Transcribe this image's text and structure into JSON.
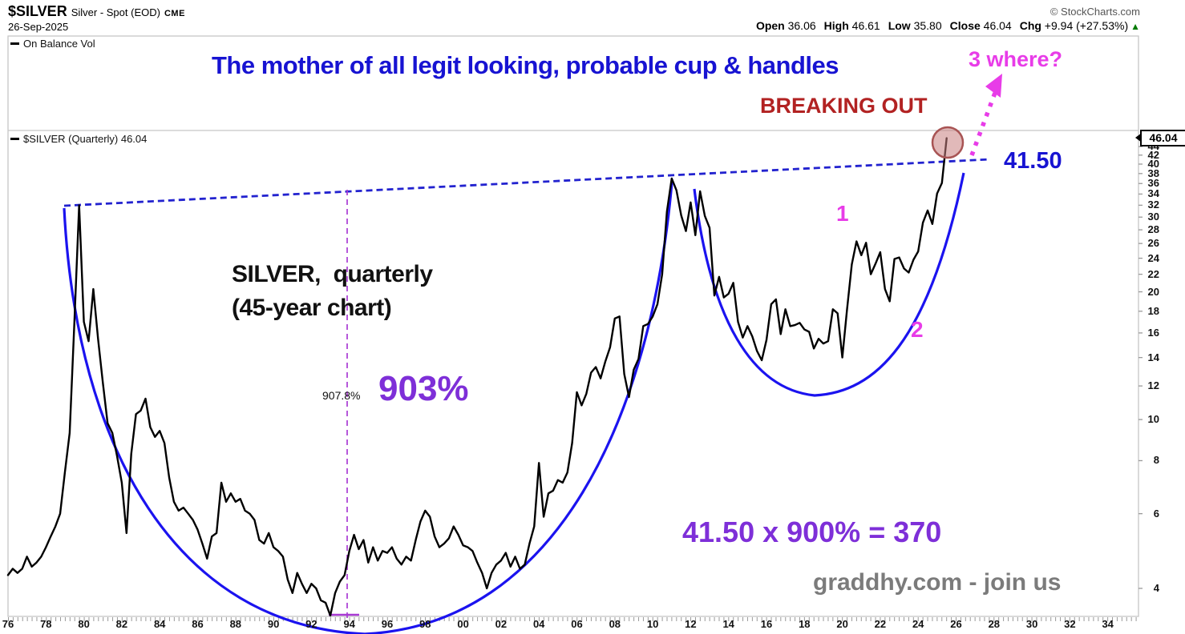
{
  "header": {
    "symbol": "$SILVER",
    "name": "Silver - Spot (EOD)",
    "exchange": "CME",
    "date": "26-Sep-2025",
    "copyright": "© StockCharts.com",
    "quote": {
      "fields": [
        {
          "label": "Open",
          "value": "36.06"
        },
        {
          "label": "High",
          "value": "46.61"
        },
        {
          "label": "Low",
          "value": "35.80"
        },
        {
          "label": "Close",
          "value": "46.04"
        },
        {
          "label": "Chg",
          "value": "+9.94 (+27.53%)"
        }
      ],
      "direction": "up",
      "direction_icon": "▲"
    }
  },
  "panels": {
    "obv": {
      "legend": "On Balance Vol"
    },
    "main": {
      "legend": "$SILVER (Quarterly) 46.04"
    }
  },
  "annotations": {
    "title": "The mother of all legit looking, probable cup & handles",
    "breaking_out": "BREAKING OUT",
    "where": "3 where?",
    "level_label": "41.50",
    "chart_label_line1": "SILVER,  quarterly",
    "chart_label_line2": "(45-year chart)",
    "measure_small": "907.8%",
    "measure_big": "903%",
    "cup1_label": "1",
    "cup2_label": "2",
    "projection": "41.50 x 900% = 370",
    "watermark": "graddhy.com - join us",
    "price_tag": "46.04"
  },
  "colors": {
    "title_blue": "#1713d2",
    "line_blue": "#1b13ef",
    "trend_blue": "#2222cf",
    "magenta": "#e83ce8",
    "violet_measure": "#a93bd4",
    "purple": "#7e2fd8",
    "breakout_red": "#b22222",
    "circle_red": "#a85454",
    "watermark_gray": "#7b7b7b",
    "up_green": "#007a00"
  },
  "axes": {
    "y_ticks": [
      44,
      42,
      40,
      38,
      36,
      34,
      32,
      30,
      28,
      26,
      24,
      22,
      20,
      18,
      16,
      14,
      12,
      10,
      8,
      6,
      4
    ],
    "x_start_year": 1976,
    "x_step_years": 2,
    "x_labels": [
      "76",
      "78",
      "80",
      "82",
      "84",
      "86",
      "88",
      "90",
      "92",
      "94",
      "96",
      "98",
      "00",
      "02",
      "04",
      "06",
      "08",
      "10",
      "12",
      "14",
      "16",
      "18",
      "20",
      "22",
      "24",
      "26",
      "28",
      "30",
      "32",
      "34"
    ]
  },
  "chart_data": {
    "type": "line",
    "symbol": "$SILVER",
    "timeframe": "Quarterly",
    "y_scale": "log",
    "x_range": [
      1976,
      2034.5
    ],
    "y_ticks": [
      4,
      6,
      8,
      10,
      12,
      14,
      16,
      18,
      20,
      22,
      24,
      26,
      28,
      30,
      32,
      34,
      36,
      38,
      40,
      42,
      44
    ],
    "last_close": 46.04,
    "resistance_level": 41.5,
    "grid": false,
    "legend_position": "top-left",
    "overlays": [
      "large-cup-arc-1980-2011",
      "small-cup-arc-2011-2025",
      "dashed-resistance-trendline-41.50",
      "vertical-measure-line-903pct",
      "breakout-circle-2025",
      "projection-arrow"
    ],
    "series": [
      {
        "name": "$SILVER (Quarterly)",
        "color": "#000000",
        "points": [
          [
            1976,
            4.3
          ],
          [
            1976.25,
            4.45
          ],
          [
            1976.5,
            4.35
          ],
          [
            1976.75,
            4.45
          ],
          [
            1977,
            4.75
          ],
          [
            1977.25,
            4.5
          ],
          [
            1977.5,
            4.6
          ],
          [
            1977.75,
            4.75
          ],
          [
            1978,
            5
          ],
          [
            1978.25,
            5.3
          ],
          [
            1978.5,
            5.6
          ],
          [
            1978.75,
            6
          ],
          [
            1979,
            7.5
          ],
          [
            1979.25,
            9.3
          ],
          [
            1979.5,
            17
          ],
          [
            1979.75,
            32
          ],
          [
            1980,
            17
          ],
          [
            1980.25,
            15.3
          ],
          [
            1980.5,
            20.3
          ],
          [
            1980.75,
            15.5
          ],
          [
            1981,
            12.2
          ],
          [
            1981.25,
            9.8
          ],
          [
            1981.5,
            9.3
          ],
          [
            1981.75,
            8.2
          ],
          [
            1982,
            7.1
          ],
          [
            1982.25,
            5.4
          ],
          [
            1982.5,
            8.3
          ],
          [
            1982.75,
            10.3
          ],
          [
            1983,
            10.5
          ],
          [
            1983.25,
            11.2
          ],
          [
            1983.5,
            9.6
          ],
          [
            1983.75,
            9.1
          ],
          [
            1984,
            9.4
          ],
          [
            1984.25,
            8.8
          ],
          [
            1984.5,
            7.3
          ],
          [
            1984.75,
            6.4
          ],
          [
            1985,
            6.1
          ],
          [
            1985.25,
            6.2
          ],
          [
            1985.5,
            6
          ],
          [
            1985.75,
            5.8
          ],
          [
            1986,
            5.5
          ],
          [
            1986.25,
            5.1
          ],
          [
            1986.5,
            4.7
          ],
          [
            1986.75,
            5.3
          ],
          [
            1987,
            5.4
          ],
          [
            1987.25,
            7.1
          ],
          [
            1987.5,
            6.4
          ],
          [
            1987.75,
            6.7
          ],
          [
            1988,
            6.4
          ],
          [
            1988.25,
            6.5
          ],
          [
            1988.5,
            6.1
          ],
          [
            1988.75,
            6
          ],
          [
            1989,
            5.8
          ],
          [
            1989.25,
            5.2
          ],
          [
            1989.5,
            5.1
          ],
          [
            1989.75,
            5.4
          ],
          [
            1990,
            5
          ],
          [
            1990.25,
            4.9
          ],
          [
            1990.5,
            4.75
          ],
          [
            1990.75,
            4.2
          ],
          [
            1991,
            3.9
          ],
          [
            1991.25,
            4.35
          ],
          [
            1991.5,
            4.1
          ],
          [
            1991.75,
            3.9
          ],
          [
            1992,
            4.1
          ],
          [
            1992.25,
            4
          ],
          [
            1992.5,
            3.75
          ],
          [
            1992.75,
            3.7
          ],
          [
            1993,
            3.45
          ],
          [
            1993.25,
            3.9
          ],
          [
            1993.5,
            4.15
          ],
          [
            1993.75,
            4.3
          ],
          [
            1994,
            4.9
          ],
          [
            1994.25,
            5.35
          ],
          [
            1994.5,
            4.95
          ],
          [
            1994.75,
            5.2
          ],
          [
            1995,
            4.6
          ],
          [
            1995.25,
            5
          ],
          [
            1995.5,
            4.65
          ],
          [
            1995.75,
            4.9
          ],
          [
            1996,
            4.85
          ],
          [
            1996.25,
            5
          ],
          [
            1996.5,
            4.7
          ],
          [
            1996.75,
            4.55
          ],
          [
            1997,
            4.75
          ],
          [
            1997.25,
            4.65
          ],
          [
            1997.5,
            5.2
          ],
          [
            1997.75,
            5.75
          ],
          [
            1998,
            6.1
          ],
          [
            1998.25,
            5.9
          ],
          [
            1998.5,
            5.3
          ],
          [
            1998.75,
            5
          ],
          [
            1999,
            5.1
          ],
          [
            1999.25,
            5.25
          ],
          [
            1999.5,
            5.6
          ],
          [
            1999.75,
            5.35
          ],
          [
            2000,
            5.05
          ],
          [
            2000.25,
            5
          ],
          [
            2000.5,
            4.9
          ],
          [
            2000.75,
            4.6
          ],
          [
            2001,
            4.35
          ],
          [
            2001.25,
            4
          ],
          [
            2001.5,
            4.35
          ],
          [
            2001.75,
            4.55
          ],
          [
            2002,
            4.65
          ],
          [
            2002.25,
            4.85
          ],
          [
            2002.5,
            4.5
          ],
          [
            2002.75,
            4.75
          ],
          [
            2003,
            4.45
          ],
          [
            2003.25,
            4.55
          ],
          [
            2003.5,
            5.1
          ],
          [
            2003.75,
            5.6
          ],
          [
            2004,
            7.9
          ],
          [
            2004.25,
            5.9
          ],
          [
            2004.5,
            6.7
          ],
          [
            2004.75,
            6.8
          ],
          [
            2005,
            7.2
          ],
          [
            2005.25,
            7.1
          ],
          [
            2005.5,
            7.5
          ],
          [
            2005.75,
            8.8
          ],
          [
            2006,
            11.6
          ],
          [
            2006.25,
            10.8
          ],
          [
            2006.5,
            11.5
          ],
          [
            2006.75,
            12.9
          ],
          [
            2007,
            13.3
          ],
          [
            2007.25,
            12.5
          ],
          [
            2007.5,
            13.7
          ],
          [
            2007.75,
            14.8
          ],
          [
            2008,
            17.3
          ],
          [
            2008.25,
            17.5
          ],
          [
            2008.5,
            12.8
          ],
          [
            2008.75,
            11.3
          ],
          [
            2009,
            13.1
          ],
          [
            2009.25,
            13.9
          ],
          [
            2009.5,
            16.6
          ],
          [
            2009.75,
            16.8
          ],
          [
            2010,
            17.5
          ],
          [
            2010.25,
            18.7
          ],
          [
            2010.5,
            22
          ],
          [
            2010.75,
            30.9
          ],
          [
            2011,
            37
          ],
          [
            2011.25,
            34.7
          ],
          [
            2011.5,
            30.3
          ],
          [
            2011.75,
            27.8
          ],
          [
            2012,
            32.5
          ],
          [
            2012.25,
            27.2
          ],
          [
            2012.5,
            34.5
          ],
          [
            2012.75,
            30.2
          ],
          [
            2013,
            28.3
          ],
          [
            2013.25,
            19.6
          ],
          [
            2013.5,
            21.7
          ],
          [
            2013.75,
            19.4
          ],
          [
            2014,
            19.8
          ],
          [
            2014.25,
            21
          ],
          [
            2014.5,
            17
          ],
          [
            2014.75,
            15.6
          ],
          [
            2015,
            16.6
          ],
          [
            2015.25,
            15.7
          ],
          [
            2015.5,
            14.5
          ],
          [
            2015.75,
            13.8
          ],
          [
            2016,
            15.4
          ],
          [
            2016.25,
            18.7
          ],
          [
            2016.5,
            19.2
          ],
          [
            2016.75,
            15.9
          ],
          [
            2017,
            18.2
          ],
          [
            2017.25,
            16.6
          ],
          [
            2017.5,
            16.7
          ],
          [
            2017.75,
            16.9
          ],
          [
            2018,
            16.3
          ],
          [
            2018.25,
            16.1
          ],
          [
            2018.5,
            14.7
          ],
          [
            2018.75,
            15.5
          ],
          [
            2019,
            15.1
          ],
          [
            2019.25,
            15.3
          ],
          [
            2019.5,
            18.2
          ],
          [
            2019.75,
            17.8
          ],
          [
            2020,
            14
          ],
          [
            2020.25,
            18.2
          ],
          [
            2020.5,
            23.2
          ],
          [
            2020.75,
            26.3
          ],
          [
            2021,
            24.4
          ],
          [
            2021.25,
            26.1
          ],
          [
            2021.5,
            22
          ],
          [
            2021.75,
            23.3
          ],
          [
            2022,
            24.8
          ],
          [
            2022.25,
            20.3
          ],
          [
            2022.5,
            19
          ],
          [
            2022.75,
            23.9
          ],
          [
            2023,
            24.1
          ],
          [
            2023.25,
            22.7
          ],
          [
            2023.5,
            22.2
          ],
          [
            2023.75,
            23.8
          ],
          [
            2024,
            24.9
          ],
          [
            2024.25,
            29.1
          ],
          [
            2024.5,
            31.1
          ],
          [
            2024.75,
            28.9
          ],
          [
            2025,
            34.1
          ],
          [
            2025.25,
            36.1
          ],
          [
            2025.5,
            46.04
          ]
        ]
      }
    ]
  }
}
